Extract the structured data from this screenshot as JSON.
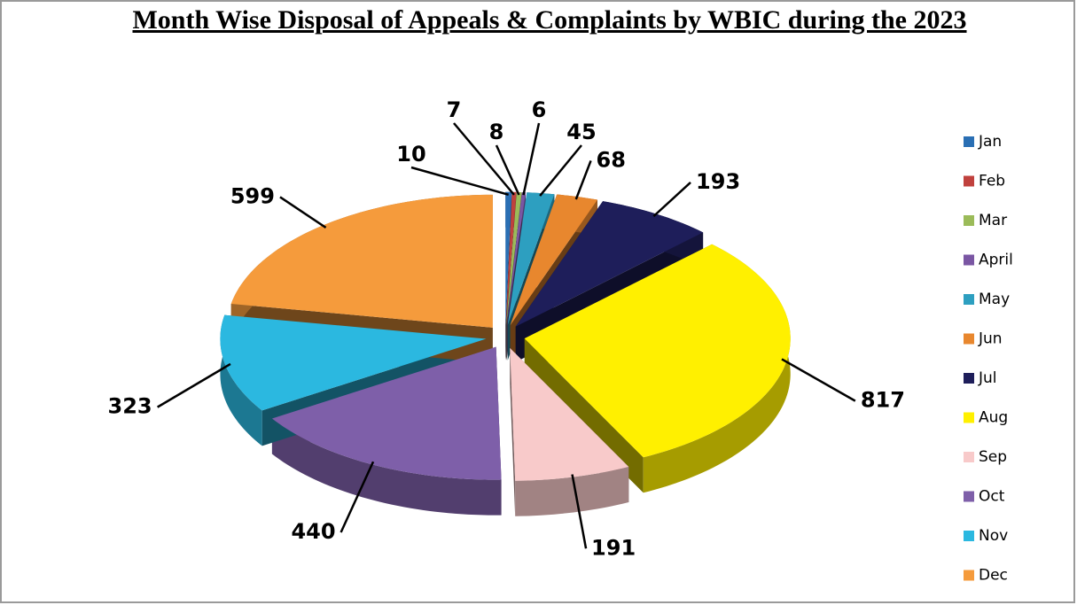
{
  "chart_data": {
    "type": "pie",
    "title": "Month Wise Disposal of Appeals & Complaints by WBIC during the 2023",
    "categories": [
      "Jan",
      "Feb",
      "Mar",
      "April",
      "May",
      "Jun",
      "Jul",
      "Aug",
      "Sep",
      "Oct",
      "Nov",
      "Dec"
    ],
    "values": [
      10,
      7,
      8,
      6,
      45,
      68,
      193,
      817,
      191,
      440,
      323,
      599
    ],
    "colors": [
      "#2a6fb4",
      "#c0413d",
      "#9bbb59",
      "#7a56a3",
      "#2d9fc0",
      "#e8872e",
      "#1e1e5a",
      "#fff000",
      "#f8caca",
      "#7e5fa9",
      "#2bb8e0",
      "#f59b3c"
    ],
    "legend": "right"
  }
}
